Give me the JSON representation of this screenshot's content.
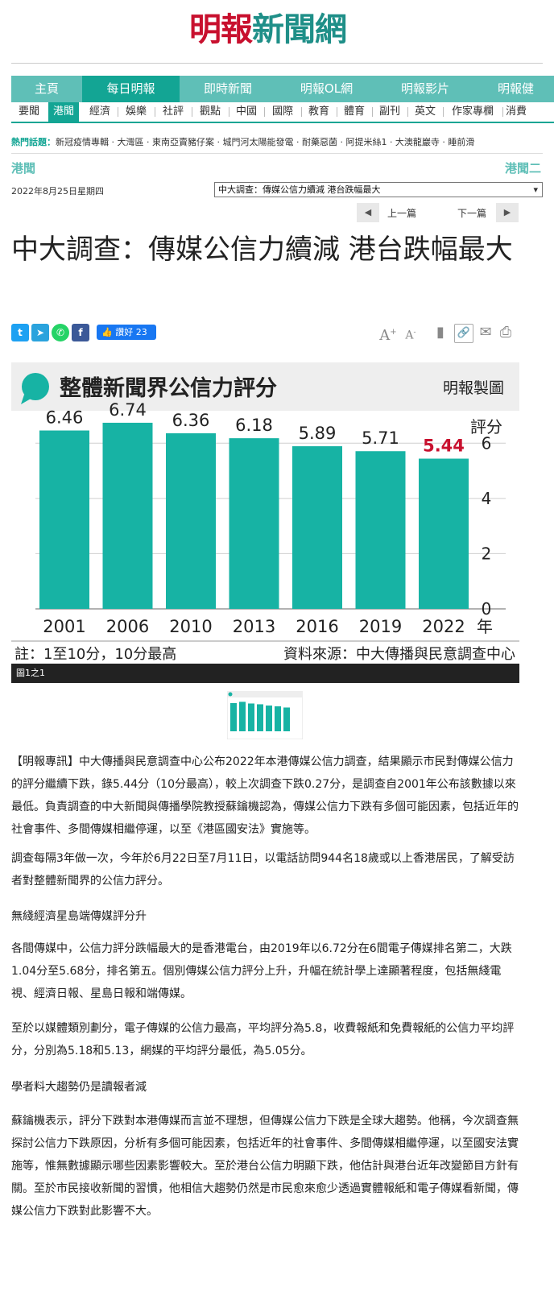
{
  "logo": {
    "part1": "明報",
    "part2": "新聞網"
  },
  "nav_primary": [
    "主頁",
    "每日明報",
    "即時新聞",
    "明報OL網",
    "明報影片",
    "明報健"
  ],
  "nav_secondary": [
    "要聞",
    "港聞",
    "經濟",
    "娛樂",
    "社評",
    "觀點",
    "中國",
    "國際",
    "教育",
    "體育",
    "副刊",
    "英文",
    "作家專欄",
    "消費"
  ],
  "hot_topics": {
    "label": "熱門話題：",
    "items": "新冠疫情專輯 · 大灣區 · 東南亞賣豬仔案 · 城門河太陽能發電 · 耐藥惡菌 · 阿提米絲1 · 大澳龍巖寺 · 睡前滑"
  },
  "section": {
    "left": "港聞",
    "right": "港聞二"
  },
  "date": "2022年8月25日星期四",
  "article_select": "中大調查：傳媒公信力續減 港台跌幅最大",
  "pager": {
    "prev": "上一篇",
    "next": "下一篇"
  },
  "article": {
    "title": "中大調查：傳媒公信力續減 港台跌幅最大",
    "like_label": "讚好 23",
    "figure_caption": "圖1之1",
    "paragraphs": [
      "【明報專訊】中大傳播與民意調查中心公布2022年本港傳媒公信力調查，結果顯示市民對傳媒公信力的評分繼續下跌，錄5.44分（10分最高），較上次調查下跌0.27分，是調查自2001年公布該數據以來最低。負責調查的中大新聞與傳播學院教授蘇鑰機認為，傳媒公信力下跌有多個可能因素，包括近年的社會事件、多間傳媒相繼停運，以至《港區國安法》實施等。",
      "調查每隔3年做一次，今年於6月22日至7月11日，以電話訪問944名18歲或以上香港居民，了解受訪者對整體新聞界的公信力評分。",
      "無綫經濟星島端傳媒評分升",
      "各間傳媒中，公信力評分跌幅最大的是香港電台，由2019年以6.72分在6間電子傳媒排名第二，大跌1.04分至5.68分，排名第五。個別傳媒公信力評分上升，升幅在統計學上達顯著程度，包括無綫電視、經濟日報、星島日報和端傳媒。",
      "至於以媒體類別劃分，電子傳媒的公信力最高，平均評分為5.8，收費報紙和免費報紙的公信力平均評分，分別為5.18和5.13，網媒的平均評分最低，為5.05分。",
      "學者料大趨勢仍是讀報者減",
      "蘇鑰機表示，評分下跌對本港傳媒而言並不理想，但傳媒公信力下跌是全球大趨勢。他稱，今次調查無探討公信力下跌原因，分析有多個可能因素，包括近年的社會事件、多間傳媒相繼停運，以至國安法實施等，惟無數據顯示哪些因素影響較大。至於港台公信力明顯下跌，他估計與港台近年改變節目方針有關。至於市民接收新聞的習慣，他相信大趨勢仍然是市民愈來愈少透過實體報紙和電子傳媒看新聞，傳媒公信力下跌對此影響不大。"
    ]
  },
  "chart_data": {
    "type": "bar",
    "title": "整體新聞界公信力評分",
    "credit": "明報製圖",
    "categories": [
      "2001",
      "2006",
      "2010",
      "2013",
      "2016",
      "2019",
      "2022"
    ],
    "values": [
      6.46,
      6.74,
      6.36,
      6.18,
      5.89,
      5.71,
      5.44
    ],
    "highlight_index": 6,
    "ylabel": "評分",
    "xlabel_unit": "年",
    "yticks": [
      0,
      2,
      4,
      6
    ],
    "ylim": [
      0,
      7
    ],
    "note": "註：1至10分，10分最高",
    "source": "資料來源：中大傳播與民意調查中心",
    "colors": {
      "bar": "#17b3a4",
      "highlight": "#c8102e",
      "header_bg": "#eeeeee",
      "bubble": "#17b3a4"
    }
  }
}
